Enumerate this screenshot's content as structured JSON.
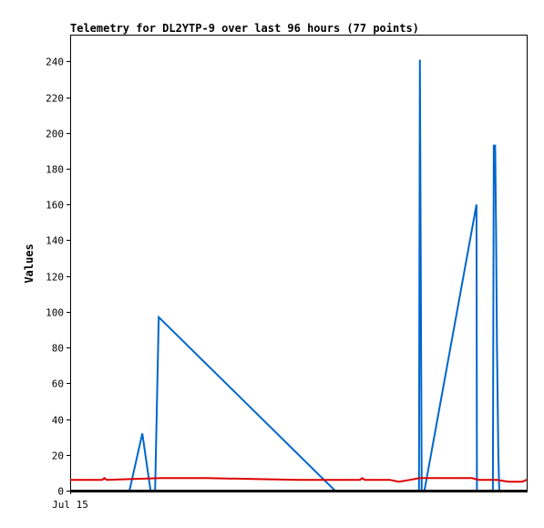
{
  "chart_data": {
    "type": "line",
    "title": "Telemetry for DL2YTP-9 over last 96 hours (77 points)",
    "ylabel": "Values",
    "xlabel": "",
    "x_tick_labels": [
      "Jul 15"
    ],
    "ylim": [
      0,
      255
    ],
    "y_ticks": [
      0,
      20,
      40,
      60,
      80,
      100,
      120,
      140,
      160,
      180,
      200,
      220,
      240
    ],
    "grid": false,
    "legend": "none",
    "series": [
      {
        "color": "#0066cc",
        "points": [
          [
            0.0,
            0
          ],
          [
            13.0,
            0
          ],
          [
            15.8,
            32
          ],
          [
            17.6,
            0
          ],
          [
            18.6,
            0
          ],
          [
            19.0,
            48
          ],
          [
            19.4,
            97
          ],
          [
            58.0,
            0
          ],
          [
            75.0,
            0
          ],
          [
            76.4,
            0
          ],
          [
            76.5,
            120
          ],
          [
            76.6,
            241
          ],
          [
            76.8,
            120
          ],
          [
            77.0,
            0
          ],
          [
            77.6,
            0
          ],
          [
            89.0,
            160
          ],
          [
            89.1,
            0
          ],
          [
            92.6,
            0
          ],
          [
            92.7,
            97
          ],
          [
            92.8,
            193
          ],
          [
            93.1,
            193
          ],
          [
            93.3,
            145
          ],
          [
            93.5,
            80
          ],
          [
            93.6,
            60
          ],
          [
            93.8,
            20
          ],
          [
            94.0,
            0
          ],
          [
            97.0,
            0
          ]
        ]
      },
      {
        "color": "#dd0000",
        "points": [
          [
            0.0,
            6
          ],
          [
            7.0,
            6
          ],
          [
            7.5,
            7
          ],
          [
            8.0,
            6
          ],
          [
            20.0,
            7
          ],
          [
            30.0,
            7
          ],
          [
            50.0,
            6
          ],
          [
            63.5,
            6
          ],
          [
            64.0,
            7
          ],
          [
            64.5,
            6
          ],
          [
            70.0,
            6
          ],
          [
            72.0,
            5
          ],
          [
            74.5,
            6
          ],
          [
            76.5,
            7
          ],
          [
            80.0,
            7
          ],
          [
            88.0,
            7
          ],
          [
            89.5,
            6
          ],
          [
            93.5,
            6
          ],
          [
            96.0,
            5
          ],
          [
            99.0,
            5
          ],
          [
            100.0,
            6
          ]
        ]
      },
      {
        "color": "#000000",
        "points": [
          [
            0.0,
            0
          ],
          [
            100.0,
            0
          ]
        ]
      }
    ]
  }
}
